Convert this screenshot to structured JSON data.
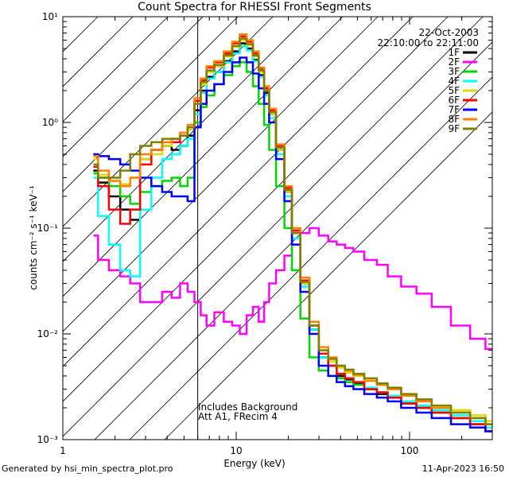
{
  "title": "Count Spectra for RHESSI Front Segments",
  "date_label": "22-Oct-2003",
  "time_range": "22:10:00 to 22:11:00",
  "note_line1": "Includes Background",
  "note_line2": "Att A1, FRecim 4",
  "footer_left": "Generated by hsi_min_spectra_plot.pro",
  "footer_right": "11-Apr-2023 16:50",
  "chart_data": {
    "type": "line",
    "title": "Count Spectra for RHESSI Front Segments",
    "xlabel": "Energy (keV)",
    "ylabel": "counts cm⁻² s⁻¹ keV⁻¹",
    "x_scale": "log",
    "y_scale": "log",
    "xlim": [
      1,
      300
    ],
    "ylim": [
      0.001,
      10
    ],
    "x_ticks": [
      1,
      10,
      100
    ],
    "x_tick_labels": [
      "1",
      "10",
      "100"
    ],
    "y_ticks": [
      0.001,
      0.01,
      0.1,
      1,
      10
    ],
    "y_tick_labels": [
      "10⁻³",
      "10⁻²",
      "10⁻¹",
      "10⁰",
      "10¹"
    ],
    "shaded_region_keV": [
      1,
      6
    ],
    "energy_keV": [
      1.5,
      1.7,
      2,
      2.3,
      2.6,
      3,
      3.5,
      4,
      4.5,
      5,
      5.5,
      6,
      6.5,
      7,
      8,
      9,
      10,
      11,
      12,
      13,
      14,
      15,
      16,
      18,
      20,
      22,
      25,
      28,
      32,
      36,
      40,
      45,
      50,
      60,
      70,
      80,
      100,
      120,
      150,
      200,
      250,
      300
    ],
    "series": [
      {
        "name": "1F",
        "color": "#000000",
        "values": [
          0.35,
          0.27,
          0.2,
          0.15,
          0.12,
          0.45,
          0.55,
          0.6,
          0.55,
          0.6,
          0.75,
          1.3,
          2.0,
          2.7,
          3.0,
          3.8,
          4.7,
          5.6,
          5.0,
          3.9,
          2.8,
          1.9,
          1.2,
          0.55,
          0.22,
          0.09,
          0.03,
          0.011,
          0.006,
          0.005,
          0.004,
          0.0037,
          0.0034,
          0.003,
          0.0027,
          0.0025,
          0.0022,
          0.002,
          0.0018,
          0.0016,
          0.0014,
          0.0012
        ]
      },
      {
        "name": "2F",
        "color": "#ff00ff",
        "values": [
          0.085,
          0.05,
          0.04,
          0.035,
          0.03,
          0.02,
          0.02,
          0.025,
          0.022,
          0.03,
          0.025,
          0.02,
          0.015,
          0.012,
          0.016,
          0.013,
          0.012,
          0.01,
          0.015,
          0.018,
          0.013,
          0.02,
          0.03,
          0.04,
          0.055,
          0.07,
          0.09,
          0.1,
          0.085,
          0.075,
          0.07,
          0.065,
          0.06,
          0.05,
          0.045,
          0.035,
          0.028,
          0.024,
          0.018,
          0.012,
          0.009,
          0.0072
        ]
      },
      {
        "name": "3F",
        "color": "#00d800",
        "values": [
          0.33,
          0.3,
          0.25,
          0.2,
          0.17,
          0.22,
          0.25,
          0.28,
          0.3,
          0.25,
          0.3,
          1.0,
          1.4,
          1.8,
          2.3,
          2.8,
          3.4,
          3.7,
          3.0,
          2.2,
          1.5,
          0.95,
          0.55,
          0.25,
          0.1,
          0.04,
          0.014,
          0.006,
          0.0045,
          0.004,
          0.0038,
          0.0035,
          0.0033,
          0.003,
          0.0028,
          0.0026,
          0.0022,
          0.002,
          0.0018,
          0.0016,
          0.0014,
          0.0013
        ]
      },
      {
        "name": "4F",
        "color": "#00ffff",
        "values": [
          0.3,
          0.13,
          0.07,
          0.04,
          0.035,
          0.15,
          0.3,
          0.45,
          0.5,
          0.6,
          0.7,
          1.2,
          1.9,
          2.6,
          3.0,
          3.7,
          4.5,
          5.3,
          4.8,
          3.8,
          2.7,
          1.8,
          1.1,
          0.5,
          0.2,
          0.08,
          0.028,
          0.011,
          0.006,
          0.005,
          0.0042,
          0.0038,
          0.0035,
          0.0031,
          0.0028,
          0.0026,
          0.0023,
          0.0021,
          0.0019,
          0.0017,
          0.0015,
          0.0013
        ]
      },
      {
        "name": "5F",
        "color": "#dcdc00",
        "values": [
          0.45,
          0.32,
          0.28,
          0.26,
          0.3,
          0.45,
          0.5,
          0.6,
          0.7,
          0.75,
          0.85,
          1.5,
          2.3,
          3.0,
          3.4,
          4.2,
          5.2,
          6.0,
          5.4,
          4.2,
          3.0,
          2.0,
          1.2,
          0.55,
          0.22,
          0.09,
          0.03,
          0.012,
          0.007,
          0.0055,
          0.0048,
          0.0043,
          0.004,
          0.0036,
          0.0033,
          0.003,
          0.0026,
          0.0024,
          0.0021,
          0.0019,
          0.0017,
          0.0015
        ]
      },
      {
        "name": "6F",
        "color": "#ff0000",
        "values": [
          0.38,
          0.25,
          0.15,
          0.11,
          0.15,
          0.4,
          0.55,
          0.65,
          0.65,
          0.75,
          0.9,
          1.6,
          2.5,
          3.3,
          3.7,
          4.5,
          5.6,
          6.5,
          5.8,
          4.5,
          3.2,
          2.1,
          1.3,
          0.6,
          0.24,
          0.095,
          0.032,
          0.012,
          0.0065,
          0.005,
          0.0042,
          0.0038,
          0.0035,
          0.003,
          0.0028,
          0.0025,
          0.0022,
          0.002,
          0.0018,
          0.0016,
          0.0014,
          0.0012
        ]
      },
      {
        "name": "7F",
        "color": "#0000ff",
        "values": [
          0.5,
          0.48,
          0.45,
          0.4,
          0.35,
          0.3,
          0.25,
          0.22,
          0.2,
          0.2,
          0.18,
          0.9,
          1.5,
          2.0,
          2.3,
          3.0,
          3.7,
          4.1,
          3.7,
          2.9,
          2.1,
          1.5,
          1.0,
          0.45,
          0.18,
          0.07,
          0.025,
          0.01,
          0.005,
          0.004,
          0.0035,
          0.0032,
          0.003,
          0.0027,
          0.0025,
          0.0023,
          0.002,
          0.0018,
          0.0016,
          0.0014,
          0.0013,
          0.0012
        ]
      },
      {
        "name": "8F",
        "color": "#ff8000",
        "values": [
          0.48,
          0.35,
          0.28,
          0.25,
          0.3,
          0.5,
          0.55,
          0.65,
          0.7,
          0.8,
          0.95,
          1.7,
          2.6,
          3.4,
          3.8,
          4.7,
          5.8,
          6.8,
          6.0,
          4.7,
          3.3,
          2.2,
          1.35,
          0.62,
          0.25,
          0.1,
          0.034,
          0.013,
          0.0075,
          0.006,
          0.005,
          0.0045,
          0.0041,
          0.0036,
          0.0033,
          0.003,
          0.0026,
          0.0023,
          0.002,
          0.0018,
          0.0016,
          0.0014
        ]
      },
      {
        "name": "9F",
        "color": "#808000",
        "values": [
          0.4,
          0.3,
          0.3,
          0.35,
          0.5,
          0.6,
          0.65,
          0.7,
          0.7,
          0.75,
          0.9,
          1.5,
          2.4,
          3.1,
          3.5,
          4.3,
          5.3,
          6.2,
          5.5,
          4.3,
          3.1,
          2.0,
          1.25,
          0.58,
          0.23,
          0.09,
          0.031,
          0.012,
          0.007,
          0.0058,
          0.005,
          0.0046,
          0.0042,
          0.0038,
          0.0034,
          0.0031,
          0.0027,
          0.0024,
          0.0021,
          0.0018,
          0.0016,
          0.0014
        ]
      }
    ]
  }
}
